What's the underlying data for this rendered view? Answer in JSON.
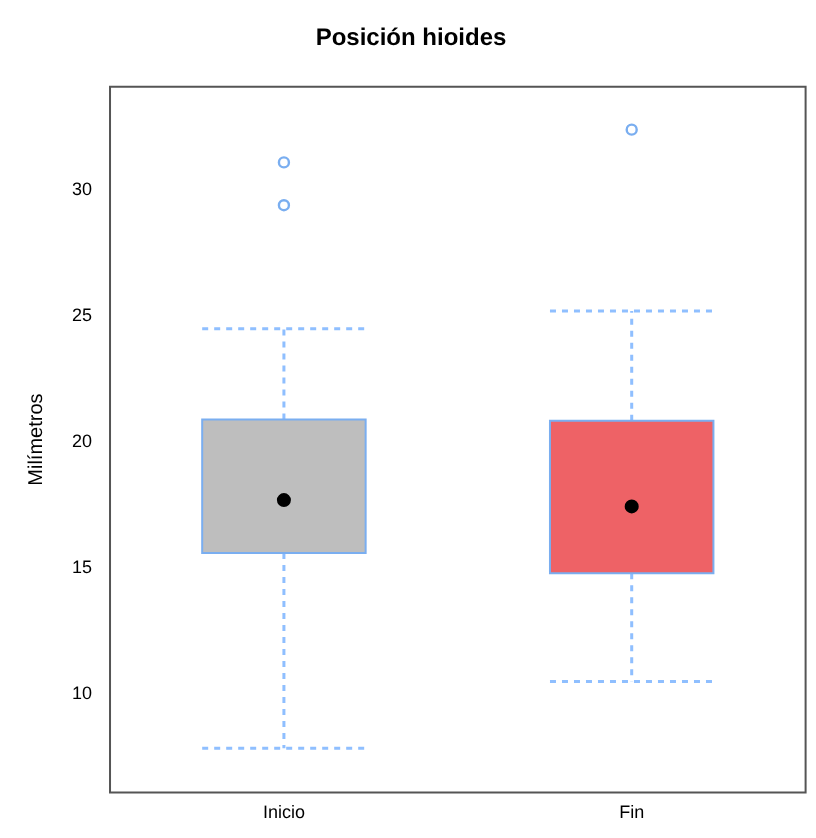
{
  "chart_data": {
    "type": "box",
    "title": "Posición hioides",
    "ylabel": "Milímetros",
    "categories": [
      "Inicio",
      "Fin"
    ],
    "colors": [
      "#bebebe",
      "#ee6266"
    ],
    "boxes": [
      {
        "low": 7.85,
        "q1": 15.6,
        "median": 17.7,
        "q3": 20.9,
        "high": 24.5,
        "outliers": [
          31.1,
          29.4
        ]
      },
      {
        "low": 10.5,
        "q1": 14.8,
        "median": 17.45,
        "q3": 20.85,
        "high": 25.2,
        "outliers": [
          32.4
        ]
      }
    ],
    "ylim": [
      6.1,
      34.1
    ],
    "yticks": [
      10,
      15,
      20,
      25,
      30
    ],
    "grid": false,
    "legend": false
  }
}
